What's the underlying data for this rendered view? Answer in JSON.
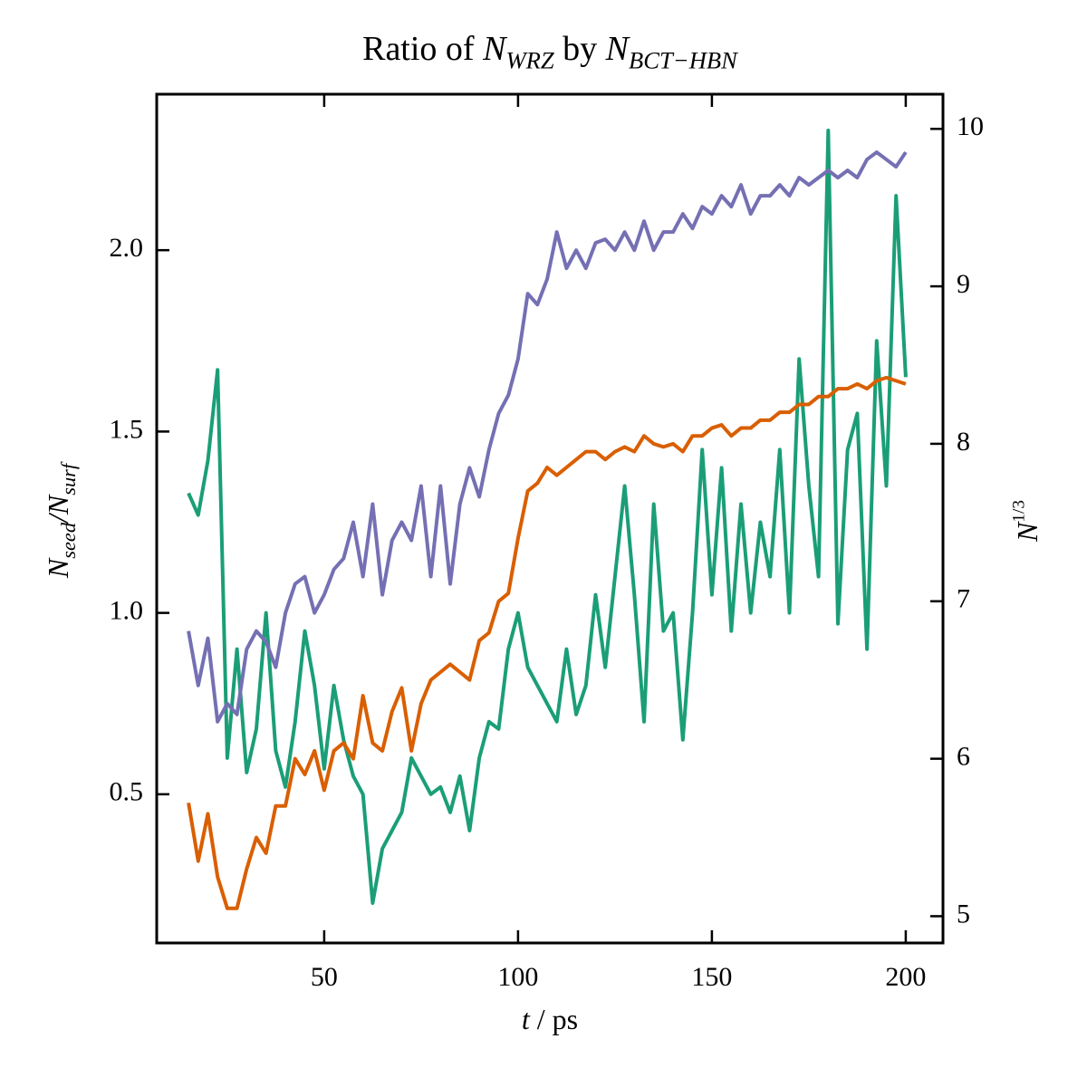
{
  "chart_data": {
    "type": "line",
    "title": [
      {
        "text": "Ratio of "
      },
      {
        "text": "N",
        "italic": true
      },
      {
        "text": "WRZ",
        "italic": true,
        "sub": true
      },
      {
        "text": " by "
      },
      {
        "text": "N",
        "italic": true
      },
      {
        "text": "BCT−HBN",
        "italic": true,
        "sub": true
      }
    ],
    "xlabel": [
      {
        "text": "t",
        "italic": true
      },
      {
        "text": " / ps"
      }
    ],
    "ylabel": [
      {
        "text": "N",
        "italic": true
      },
      {
        "text": "seed",
        "italic": true,
        "sub": true
      },
      {
        "text": "/",
        "italic": true
      },
      {
        "text": "N",
        "italic": true
      },
      {
        "text": "surf",
        "italic": true,
        "sub": true
      }
    ],
    "y2label": [
      {
        "text": "N",
        "italic": true
      },
      {
        "text": "1/3",
        "sup": true
      }
    ],
    "ycolor": "#1b9e77",
    "y2color": "#d95f02",
    "xlim": [
      6.8,
      209.6
    ],
    "ylim": [
      0.09,
      2.43
    ],
    "y2lim": [
      4.83,
      10.22
    ],
    "xticks": [
      50,
      100,
      150,
      200
    ],
    "yticks": [
      0.5,
      {
        "value": 1.0,
        "label": "1.0"
      },
      1.5,
      {
        "value": 2.0,
        "label": "2.0"
      }
    ],
    "y2ticks": [
      5,
      6,
      7,
      8,
      9,
      10
    ],
    "x": [
      15,
      17.5,
      20,
      22.5,
      25,
      27.5,
      30,
      32.5,
      35,
      37.5,
      40,
      42.5,
      45,
      47.5,
      50,
      52.5,
      55,
      57.5,
      60,
      62.5,
      65,
      67.5,
      70,
      72.5,
      75,
      77.5,
      80,
      82.5,
      85,
      87.5,
      90,
      92.5,
      95,
      97.5,
      100,
      102.5,
      105,
      107.5,
      110,
      112.5,
      115,
      117.5,
      120,
      122.5,
      125,
      127.5,
      130,
      132.5,
      135,
      137.5,
      140,
      142.5,
      145,
      147.5,
      150,
      152.5,
      155,
      157.5,
      160,
      162.5,
      165,
      167.5,
      170,
      172.5,
      175,
      177.5,
      180,
      182.5,
      185,
      187.5,
      190,
      192.5,
      195,
      197.5,
      200
    ],
    "series": [
      {
        "color": "#1b9e77",
        "values": [
          1.33,
          1.27,
          1.42,
          1.67,
          0.6,
          0.9,
          0.56,
          0.68,
          1.0,
          0.62,
          0.52,
          0.7,
          0.95,
          0.8,
          0.57,
          0.8,
          0.65,
          0.55,
          0.5,
          0.2,
          0.35,
          0.4,
          0.45,
          0.6,
          0.55,
          0.5,
          0.52,
          0.45,
          0.55,
          0.4,
          0.6,
          0.7,
          0.68,
          0.9,
          1.0,
          0.85,
          0.8,
          0.75,
          0.7,
          0.9,
          0.72,
          0.8,
          1.05,
          0.85,
          1.1,
          1.35,
          1.05,
          0.7,
          1.3,
          0.95,
          1.0,
          0.65,
          1.0,
          1.45,
          1.05,
          1.4,
          0.95,
          1.3,
          1.0,
          1.25,
          1.1,
          1.45,
          1.0,
          1.7,
          1.35,
          1.1,
          2.33,
          0.97,
          1.45,
          1.55,
          0.9,
          1.75,
          1.35,
          2.15,
          1.65
        ]
      },
      {
        "color": "#7570b3",
        "values": [
          0.95,
          0.8,
          0.93,
          0.7,
          0.75,
          0.72,
          0.9,
          0.95,
          0.92,
          0.85,
          1.0,
          1.08,
          1.1,
          1.0,
          1.05,
          1.12,
          1.15,
          1.25,
          1.1,
          1.3,
          1.05,
          1.2,
          1.25,
          1.2,
          1.35,
          1.1,
          1.35,
          1.08,
          1.3,
          1.4,
          1.32,
          1.45,
          1.55,
          1.6,
          1.7,
          1.88,
          1.85,
          1.92,
          2.05,
          1.95,
          2.0,
          1.95,
          2.02,
          2.03,
          2.0,
          2.05,
          2.0,
          2.08,
          2.0,
          2.05,
          2.05,
          2.1,
          2.06,
          2.12,
          2.1,
          2.15,
          2.12,
          2.18,
          2.1,
          2.15,
          2.15,
          2.18,
          2.15,
          2.2,
          2.18,
          2.2,
          2.22,
          2.2,
          2.22,
          2.2,
          2.25,
          2.27,
          2.25,
          2.23,
          2.27
        ]
      },
      {
        "color": "#d95f02",
        "axis": "y2",
        "values": [
          5.72,
          5.35,
          5.65,
          5.25,
          5.05,
          5.05,
          5.3,
          5.5,
          5.4,
          5.7,
          5.7,
          6.0,
          5.9,
          6.05,
          5.8,
          6.05,
          6.1,
          6.0,
          6.4,
          6.1,
          6.05,
          6.3,
          6.45,
          6.05,
          6.35,
          6.5,
          6.55,
          6.6,
          6.55,
          6.5,
          6.75,
          6.8,
          7.0,
          7.05,
          7.4,
          7.7,
          7.75,
          7.85,
          7.8,
          7.85,
          7.9,
          7.95,
          7.95,
          7.9,
          7.95,
          7.98,
          7.95,
          8.05,
          8.0,
          7.98,
          8.0,
          7.95,
          8.05,
          8.05,
          8.1,
          8.12,
          8.05,
          8.1,
          8.1,
          8.15,
          8.15,
          8.2,
          8.2,
          8.25,
          8.25,
          8.3,
          8.3,
          8.35,
          8.35,
          8.38,
          8.35,
          8.4,
          8.42,
          8.4,
          8.38
        ]
      }
    ]
  }
}
